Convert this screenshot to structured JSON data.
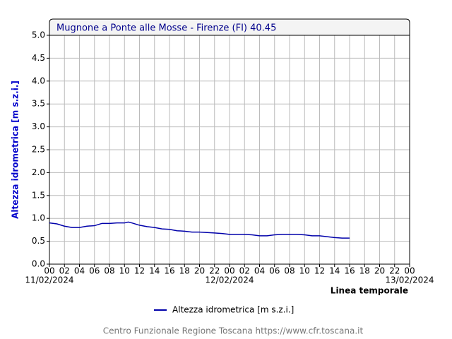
{
  "chart_data": {
    "type": "line",
    "title": "Mugnone a Ponte alle Mosse - Firenze (FI) 40.45",
    "y_label": "Altezza idrometrica [m s.z.i.]",
    "x_label": "Linea temporale",
    "footer": "Centro Funzionale Regione Toscana https://www.cfr.toscana.it",
    "xlim": [
      0,
      48
    ],
    "xticks": [
      {
        "value": 0,
        "label": "00"
      },
      {
        "value": 2,
        "label": "02"
      },
      {
        "value": 4,
        "label": "04"
      },
      {
        "value": 6,
        "label": "06"
      },
      {
        "value": 8,
        "label": "08"
      },
      {
        "value": 10,
        "label": "10"
      },
      {
        "value": 12,
        "label": "12"
      },
      {
        "value": 14,
        "label": "14"
      },
      {
        "value": 16,
        "label": "16"
      },
      {
        "value": 18,
        "label": "18"
      },
      {
        "value": 20,
        "label": "20"
      },
      {
        "value": 22,
        "label": "22"
      },
      {
        "value": 24,
        "label": "00"
      },
      {
        "value": 26,
        "label": "02"
      },
      {
        "value": 28,
        "label": "04"
      },
      {
        "value": 30,
        "label": "06"
      },
      {
        "value": 32,
        "label": "08"
      },
      {
        "value": 34,
        "label": "10"
      },
      {
        "value": 36,
        "label": "12"
      },
      {
        "value": 38,
        "label": "14"
      },
      {
        "value": 40,
        "label": "16"
      },
      {
        "value": 42,
        "label": "18"
      },
      {
        "value": 44,
        "label": "20"
      },
      {
        "value": 46,
        "label": "22"
      },
      {
        "value": 48,
        "label": "00"
      }
    ],
    "date_labels": [
      {
        "value": 0,
        "label": "11/02/2024"
      },
      {
        "value": 24,
        "label": "12/02/2024"
      },
      {
        "value": 48,
        "label": "13/02/2024"
      }
    ],
    "ylim": [
      0,
      5
    ],
    "yticks": [
      {
        "value": 0,
        "label": "0.0"
      },
      {
        "value": 0.5,
        "label": "0.5"
      },
      {
        "value": 1,
        "label": "1.0"
      },
      {
        "value": 1.5,
        "label": "1.5"
      },
      {
        "value": 2,
        "label": "2.0"
      },
      {
        "value": 2.5,
        "label": "2.5"
      },
      {
        "value": 3,
        "label": "3.0"
      },
      {
        "value": 3.5,
        "label": "3.5"
      },
      {
        "value": 4,
        "label": "4.0"
      },
      {
        "value": 4.5,
        "label": "4.5"
      },
      {
        "value": 5,
        "label": "5.0"
      }
    ],
    "grid": true,
    "x": [
      0,
      1,
      2,
      3,
      4,
      5,
      6,
      7,
      8,
      9,
      10,
      10.5,
      11,
      12,
      13,
      14,
      15,
      16,
      17,
      18,
      19,
      20,
      21,
      22,
      23,
      24,
      25,
      26,
      27,
      28,
      29,
      30,
      31,
      32,
      33,
      34,
      35,
      36,
      37,
      38,
      39,
      40
    ],
    "series": [
      {
        "name": "Altezza idrometrica [m s.z.i.]",
        "color": "#0000aa",
        "values": [
          0.9,
          0.88,
          0.83,
          0.8,
          0.8,
          0.83,
          0.84,
          0.89,
          0.89,
          0.9,
          0.9,
          0.92,
          0.9,
          0.85,
          0.82,
          0.8,
          0.77,
          0.76,
          0.73,
          0.72,
          0.7,
          0.7,
          0.69,
          0.68,
          0.67,
          0.65,
          0.65,
          0.65,
          0.64,
          0.62,
          0.62,
          0.64,
          0.65,
          0.65,
          0.65,
          0.64,
          0.62,
          0.62,
          0.6,
          0.58,
          0.57,
          0.57
        ]
      }
    ]
  }
}
